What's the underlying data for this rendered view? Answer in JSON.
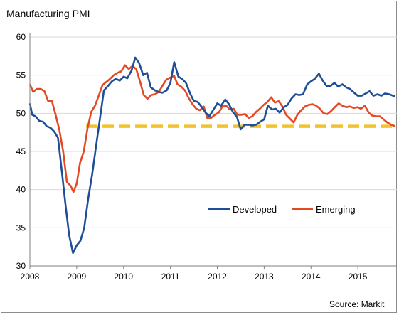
{
  "chart_data": {
    "type": "line",
    "title": "Manufacturing PMI",
    "xlabel": "",
    "ylabel": "",
    "xlim": [
      2008,
      2015.833
    ],
    "ylim": [
      30,
      60
    ],
    "yticks": [
      30,
      35,
      40,
      45,
      50,
      55,
      60
    ],
    "xticks": [
      2008,
      2009,
      2010,
      2011,
      2012,
      2013,
      2014,
      2015
    ],
    "grid": "horizontal",
    "legend_position": "center-right",
    "source": "Source: Markit",
    "reference_line": {
      "value": 48.3,
      "color": "#f2c22e",
      "style": "dashed",
      "x_start": 2009.2,
      "x_end": 2015.833
    },
    "series": [
      {
        "name": "Developed",
        "color": "#1f4e96",
        "points": [
          [
            2008.0,
            51.3
          ],
          [
            2008.05,
            49.8
          ],
          [
            2008.12,
            49.6
          ],
          [
            2008.2,
            49.0
          ],
          [
            2008.28,
            48.9
          ],
          [
            2008.36,
            48.3
          ],
          [
            2008.44,
            48.1
          ],
          [
            2008.52,
            47.6
          ],
          [
            2008.6,
            46.8
          ],
          [
            2008.68,
            42.5
          ],
          [
            2008.76,
            38.0
          ],
          [
            2008.84,
            34.0
          ],
          [
            2008.92,
            31.7
          ],
          [
            2009.0,
            32.7
          ],
          [
            2009.08,
            33.3
          ],
          [
            2009.16,
            35.0
          ],
          [
            2009.25,
            39.0
          ],
          [
            2009.33,
            42.0
          ],
          [
            2009.42,
            46.0
          ],
          [
            2009.5,
            49.5
          ],
          [
            2009.58,
            53.0
          ],
          [
            2009.67,
            53.6
          ],
          [
            2009.75,
            54.2
          ],
          [
            2009.83,
            54.5
          ],
          [
            2009.92,
            54.3
          ],
          [
            2010.0,
            54.8
          ],
          [
            2010.08,
            54.6
          ],
          [
            2010.17,
            55.6
          ],
          [
            2010.25,
            57.3
          ],
          [
            2010.33,
            56.6
          ],
          [
            2010.42,
            55.0
          ],
          [
            2010.5,
            55.3
          ],
          [
            2010.58,
            53.4
          ],
          [
            2010.67,
            53.0
          ],
          [
            2010.75,
            52.8
          ],
          [
            2010.83,
            52.7
          ],
          [
            2010.92,
            53.0
          ],
          [
            2011.0,
            54.0
          ],
          [
            2011.08,
            56.7
          ],
          [
            2011.17,
            54.8
          ],
          [
            2011.25,
            54.5
          ],
          [
            2011.33,
            54.0
          ],
          [
            2011.42,
            52.6
          ],
          [
            2011.5,
            51.6
          ],
          [
            2011.58,
            51.5
          ],
          [
            2011.67,
            50.8
          ],
          [
            2011.75,
            50.1
          ],
          [
            2011.83,
            49.6
          ],
          [
            2011.92,
            50.5
          ],
          [
            2012.0,
            51.3
          ],
          [
            2012.08,
            51.0
          ],
          [
            2012.17,
            51.8
          ],
          [
            2012.25,
            51.2
          ],
          [
            2012.33,
            50.2
          ],
          [
            2012.42,
            49.5
          ],
          [
            2012.5,
            47.9
          ],
          [
            2012.58,
            48.5
          ],
          [
            2012.67,
            48.5
          ],
          [
            2012.75,
            48.4
          ],
          [
            2012.83,
            48.5
          ],
          [
            2012.92,
            48.9
          ],
          [
            2013.0,
            49.2
          ],
          [
            2013.08,
            51.0
          ],
          [
            2013.17,
            50.5
          ],
          [
            2013.25,
            50.6
          ],
          [
            2013.33,
            50.1
          ],
          [
            2013.42,
            50.8
          ],
          [
            2013.5,
            51.1
          ],
          [
            2013.58,
            51.9
          ],
          [
            2013.67,
            52.5
          ],
          [
            2013.75,
            52.4
          ],
          [
            2013.83,
            52.5
          ],
          [
            2013.92,
            53.8
          ],
          [
            2014.0,
            54.2
          ],
          [
            2014.08,
            54.5
          ],
          [
            2014.17,
            55.2
          ],
          [
            2014.25,
            54.3
          ],
          [
            2014.33,
            53.6
          ],
          [
            2014.42,
            53.6
          ],
          [
            2014.5,
            54.0
          ],
          [
            2014.58,
            53.5
          ],
          [
            2014.67,
            53.8
          ],
          [
            2014.75,
            53.4
          ],
          [
            2014.83,
            53.2
          ],
          [
            2014.92,
            52.7
          ],
          [
            2015.0,
            52.3
          ],
          [
            2015.08,
            52.3
          ],
          [
            2015.17,
            52.6
          ],
          [
            2015.25,
            52.9
          ],
          [
            2015.33,
            52.3
          ],
          [
            2015.42,
            52.5
          ],
          [
            2015.5,
            52.3
          ],
          [
            2015.58,
            52.6
          ],
          [
            2015.67,
            52.5
          ],
          [
            2015.75,
            52.3
          ],
          [
            2015.8,
            52.2
          ]
        ]
      },
      {
        "name": "Emerging",
        "color": "#e34a24",
        "points": [
          [
            2008.0,
            53.8
          ],
          [
            2008.07,
            52.8
          ],
          [
            2008.15,
            53.2
          ],
          [
            2008.23,
            53.2
          ],
          [
            2008.31,
            52.9
          ],
          [
            2008.39,
            51.6
          ],
          [
            2008.47,
            51.6
          ],
          [
            2008.55,
            49.8
          ],
          [
            2008.63,
            47.8
          ],
          [
            2008.71,
            45.0
          ],
          [
            2008.79,
            41.0
          ],
          [
            2008.87,
            40.5
          ],
          [
            2008.93,
            39.7
          ],
          [
            2009.0,
            40.8
          ],
          [
            2009.07,
            43.5
          ],
          [
            2009.15,
            45.0
          ],
          [
            2009.23,
            48.0
          ],
          [
            2009.31,
            50.2
          ],
          [
            2009.39,
            51.0
          ],
          [
            2009.47,
            52.3
          ],
          [
            2009.55,
            53.7
          ],
          [
            2009.63,
            54.1
          ],
          [
            2009.71,
            54.5
          ],
          [
            2009.79,
            55.0
          ],
          [
            2009.87,
            55.3
          ],
          [
            2009.95,
            55.5
          ],
          [
            2010.03,
            56.3
          ],
          [
            2010.11,
            55.8
          ],
          [
            2010.19,
            56.2
          ],
          [
            2010.27,
            55.8
          ],
          [
            2010.35,
            54.2
          ],
          [
            2010.43,
            52.4
          ],
          [
            2010.51,
            51.9
          ],
          [
            2010.59,
            52.4
          ],
          [
            2010.67,
            52.5
          ],
          [
            2010.75,
            52.8
          ],
          [
            2010.83,
            53.6
          ],
          [
            2010.91,
            54.4
          ],
          [
            2011.0,
            54.7
          ],
          [
            2011.08,
            54.9
          ],
          [
            2011.15,
            53.8
          ],
          [
            2011.23,
            53.5
          ],
          [
            2011.31,
            53.0
          ],
          [
            2011.39,
            52.0
          ],
          [
            2011.47,
            51.2
          ],
          [
            2011.55,
            50.6
          ],
          [
            2011.63,
            50.4
          ],
          [
            2011.71,
            50.9
          ],
          [
            2011.79,
            49.3
          ],
          [
            2011.87,
            49.4
          ],
          [
            2011.95,
            49.8
          ],
          [
            2012.03,
            50.1
          ],
          [
            2012.11,
            50.9
          ],
          [
            2012.19,
            51.0
          ],
          [
            2012.27,
            50.5
          ],
          [
            2012.35,
            50.6
          ],
          [
            2012.43,
            49.8
          ],
          [
            2012.51,
            49.8
          ],
          [
            2012.59,
            49.9
          ],
          [
            2012.67,
            49.4
          ],
          [
            2012.75,
            49.6
          ],
          [
            2012.83,
            50.2
          ],
          [
            2012.91,
            50.6
          ],
          [
            2012.99,
            51.1
          ],
          [
            2013.07,
            51.5
          ],
          [
            2013.15,
            52.1
          ],
          [
            2013.23,
            51.4
          ],
          [
            2013.31,
            51.6
          ],
          [
            2013.39,
            50.9
          ],
          [
            2013.47,
            49.8
          ],
          [
            2013.55,
            49.3
          ],
          [
            2013.63,
            48.8
          ],
          [
            2013.71,
            49.8
          ],
          [
            2013.79,
            50.4
          ],
          [
            2013.87,
            50.9
          ],
          [
            2013.95,
            51.1
          ],
          [
            2014.03,
            51.2
          ],
          [
            2014.11,
            51.0
          ],
          [
            2014.19,
            50.6
          ],
          [
            2014.27,
            50.0
          ],
          [
            2014.35,
            49.9
          ],
          [
            2014.43,
            50.3
          ],
          [
            2014.51,
            50.8
          ],
          [
            2014.59,
            51.3
          ],
          [
            2014.67,
            51.0
          ],
          [
            2014.75,
            50.8
          ],
          [
            2014.83,
            50.9
          ],
          [
            2014.91,
            50.7
          ],
          [
            2014.99,
            50.8
          ],
          [
            2015.07,
            50.6
          ],
          [
            2015.15,
            51.0
          ],
          [
            2015.23,
            50.1
          ],
          [
            2015.31,
            49.7
          ],
          [
            2015.39,
            49.6
          ],
          [
            2015.47,
            49.6
          ],
          [
            2015.55,
            49.2
          ],
          [
            2015.63,
            48.8
          ],
          [
            2015.71,
            48.5
          ],
          [
            2015.8,
            48.3
          ]
        ]
      }
    ]
  }
}
